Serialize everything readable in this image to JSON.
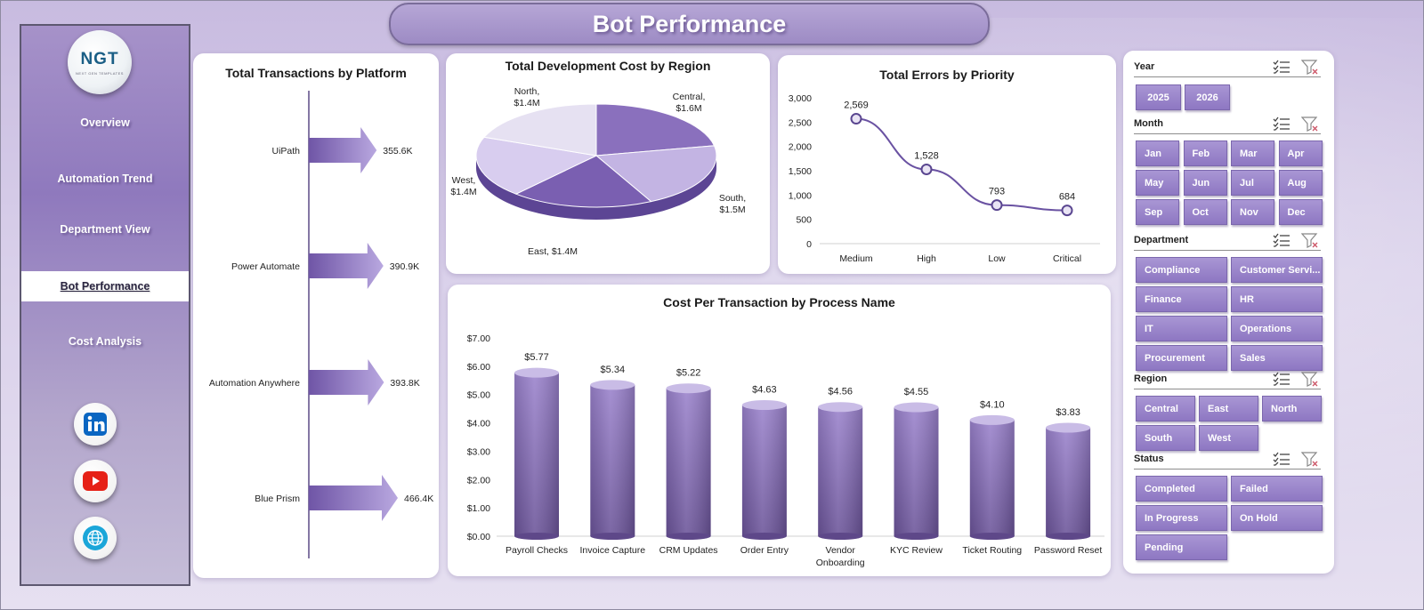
{
  "title": "Bot Performance",
  "logo": {
    "text_main": "NGT",
    "text_sub": "NEXT GEN TEMPLATES"
  },
  "nav": [
    {
      "label": "Overview",
      "active": false
    },
    {
      "label": "Automation Trend",
      "active": false
    },
    {
      "label": "Department View",
      "active": false
    },
    {
      "label": "Bot Performance",
      "active": true
    },
    {
      "label": "Cost Analysis",
      "active": false
    }
  ],
  "social": [
    {
      "icon": "linkedin-icon",
      "color": "#0a66c2"
    },
    {
      "icon": "youtube-icon",
      "color": "#e62117"
    },
    {
      "icon": "globe-icon",
      "color": "#1ba6d9"
    }
  ],
  "colors": {
    "accent": "#8e77c2",
    "dark_purple": "#6f55a6",
    "light_purple": "#c9bce6"
  },
  "chart_data": [
    {
      "type": "bar",
      "orientation": "horizontal",
      "title": "Total Transactions by Platform",
      "categories": [
        "UiPath",
        "Power Automate",
        "Automation Anywhere",
        "Blue Prism"
      ],
      "values": [
        355.6,
        390.9,
        393.8,
        466.4
      ],
      "value_labels": [
        "355.6K",
        "390.9K",
        "393.8K",
        "466.4K"
      ]
    },
    {
      "type": "pie",
      "title": "Total Development Cost by Region",
      "labels": [
        "Central",
        "South",
        "East",
        "West",
        "North"
      ],
      "values": [
        1.6,
        1.5,
        1.4,
        1.4,
        1.4
      ],
      "value_labels": [
        "Central,\n$1.6M",
        "South,\n$1.5M",
        "East, $1.4M",
        "West,\n$1.4M",
        "North,\n$1.4M"
      ]
    },
    {
      "type": "line",
      "title": "Total Errors by Priority",
      "categories": [
        "Medium",
        "High",
        "Low",
        "Critical"
      ],
      "values": [
        2569,
        1528,
        793,
        684
      ],
      "value_labels": [
        "2,569",
        "1,528",
        "793",
        "684"
      ],
      "ylim": [
        0,
        3000
      ],
      "yticks": [
        "0",
        "500",
        "1,000",
        "1,500",
        "2,000",
        "2,500",
        "3,000"
      ]
    },
    {
      "type": "bar",
      "title": "Cost Per Transaction by Process Name",
      "categories": [
        "Payroll Checks",
        "Invoice Capture",
        "CRM Updates",
        "Order Entry",
        "Vendor Onboarding",
        "KYC Review",
        "Ticket Routing",
        "Password Reset"
      ],
      "values": [
        5.77,
        5.34,
        5.22,
        4.63,
        4.56,
        4.55,
        4.1,
        3.83
      ],
      "value_labels": [
        "$5.77",
        "$5.34",
        "$5.22",
        "$4.63",
        "$4.56",
        "$4.55",
        "$4.10",
        "$3.83"
      ],
      "ylim": [
        0,
        7
      ],
      "yticks": [
        "$0.00",
        "$1.00",
        "$2.00",
        "$3.00",
        "$4.00",
        "$5.00",
        "$6.00",
        "$7.00"
      ]
    }
  ],
  "filters": {
    "year": {
      "label": "Year",
      "options": [
        "2025",
        "2026"
      ]
    },
    "month": {
      "label": "Month",
      "options": [
        "Jan",
        "Feb",
        "Mar",
        "Apr",
        "May",
        "Jun",
        "Jul",
        "Aug",
        "Sep",
        "Oct",
        "Nov",
        "Dec"
      ]
    },
    "department": {
      "label": "Department",
      "options": [
        "Compliance",
        "Customer Servi...",
        "Finance",
        "HR",
        "IT",
        "Operations",
        "Procurement",
        "Sales"
      ]
    },
    "region": {
      "label": "Region",
      "options": [
        "Central",
        "East",
        "North",
        "South",
        "West"
      ]
    },
    "status": {
      "label": "Status",
      "options": [
        "Completed",
        "Failed",
        "In Progress",
        "On Hold",
        "Pending"
      ]
    }
  }
}
